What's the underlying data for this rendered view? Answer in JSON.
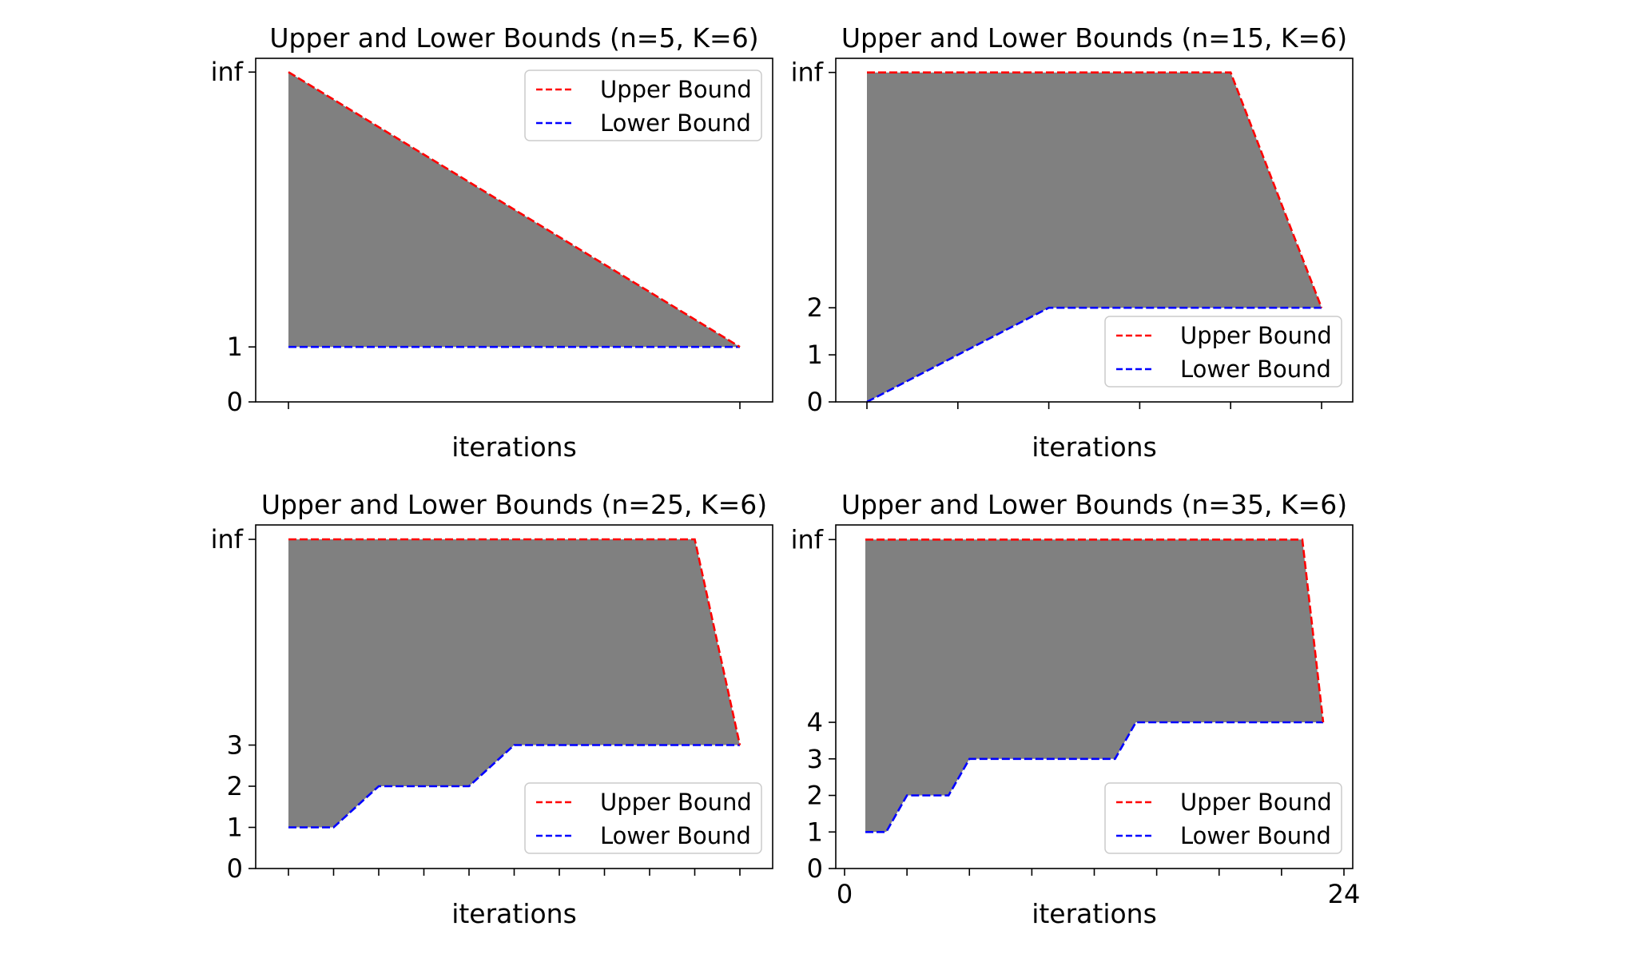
{
  "colors": {
    "upper": "#ff0000",
    "lower": "#0000ff",
    "fill": "#808080",
    "axes": "#000000",
    "background": "#ffffff"
  },
  "chart_data": [
    {
      "type": "area",
      "title": "Upper and Lower Bounds (n=5, K=6)",
      "xlabel": "iterations",
      "ylabel": "",
      "xlim": [
        0,
        1
      ],
      "x_ticks": [
        0,
        1
      ],
      "x_tick_labels": [
        "",
        ""
      ],
      "y_ticks": [
        0,
        1,
        6
      ],
      "y_tick_labels": [
        "0",
        "1",
        "inf"
      ],
      "ylim": [
        0,
        6.25
      ],
      "inf_value": 6,
      "legend_position": "upper right",
      "series": [
        {
          "name": "Upper Bound",
          "color": "#ff0000",
          "style": "dashed",
          "x": [
            0,
            1
          ],
          "y": [
            "inf",
            1
          ]
        },
        {
          "name": "Lower Bound",
          "color": "#0000ff",
          "style": "dashed",
          "x": [
            0,
            1
          ],
          "y": [
            1,
            1
          ]
        }
      ],
      "fill_between": {
        "color": "#808080",
        "between": [
          "Upper Bound",
          "Lower Bound"
        ]
      }
    },
    {
      "type": "area",
      "title": "Upper and Lower Bounds (n=15, K=6)",
      "xlabel": "iterations",
      "ylabel": "",
      "xlim": [
        0,
        5
      ],
      "x_ticks": [
        0,
        1,
        2,
        3,
        4,
        5
      ],
      "x_tick_labels": [
        "",
        "",
        "",
        "",
        "",
        ""
      ],
      "y_ticks": [
        0,
        1,
        2,
        7
      ],
      "y_tick_labels": [
        "0",
        "1",
        "2",
        "inf"
      ],
      "ylim": [
        0,
        7.3
      ],
      "inf_value": 7,
      "legend_position": "lower right",
      "series": [
        {
          "name": "Upper Bound",
          "color": "#ff0000",
          "style": "dashed",
          "x": [
            0,
            1,
            2,
            3,
            4,
            5
          ],
          "y": [
            "inf",
            "inf",
            "inf",
            "inf",
            "inf",
            2
          ]
        },
        {
          "name": "Lower Bound",
          "color": "#0000ff",
          "style": "dashed",
          "x": [
            0,
            1,
            2,
            3,
            4,
            5
          ],
          "y": [
            0,
            1,
            2,
            2,
            2,
            2
          ]
        }
      ],
      "fill_between": {
        "color": "#808080",
        "between": [
          "Upper Bound",
          "Lower Bound"
        ]
      }
    },
    {
      "type": "area",
      "title": "Upper and Lower Bounds (n=25, K=6)",
      "xlabel": "iterations",
      "ylabel": "",
      "xlim": [
        0,
        10
      ],
      "x_ticks": [
        0,
        1,
        2,
        3,
        4,
        5,
        6,
        7,
        8,
        9,
        10
      ],
      "x_tick_labels": [
        "",
        "",
        "",
        "",
        "",
        "",
        "",
        "",
        "",
        "",
        ""
      ],
      "y_ticks": [
        0,
        1,
        2,
        3,
        8
      ],
      "y_tick_labels": [
        "0",
        "1",
        "2",
        "3",
        "inf"
      ],
      "ylim": [
        0,
        8.35
      ],
      "inf_value": 8,
      "legend_position": "lower right",
      "series": [
        {
          "name": "Upper Bound",
          "color": "#ff0000",
          "style": "dashed",
          "x": [
            0,
            1,
            2,
            3,
            4,
            5,
            6,
            7,
            8,
            9,
            10
          ],
          "y": [
            "inf",
            "inf",
            "inf",
            "inf",
            "inf",
            "inf",
            "inf",
            "inf",
            "inf",
            "inf",
            3
          ]
        },
        {
          "name": "Lower Bound",
          "color": "#0000ff",
          "style": "dashed",
          "x": [
            0,
            1,
            2,
            3,
            4,
            5,
            6,
            7,
            8,
            9,
            10
          ],
          "y": [
            1,
            1,
            2,
            2,
            2,
            3,
            3,
            3,
            3,
            3,
            3
          ]
        }
      ],
      "fill_between": {
        "color": "#808080",
        "between": [
          "Upper Bound",
          "Lower Bound"
        ]
      }
    },
    {
      "type": "area",
      "title": "Upper and Lower Bounds (n=35, K=6)",
      "xlabel": "iterations",
      "ylabel": "",
      "xlim": [
        0,
        24
      ],
      "x_ticks": [
        0,
        3,
        6,
        9,
        12,
        15,
        18,
        21,
        24
      ],
      "x_tick_labels": [
        "0",
        "",
        "",
        "",
        "",
        "",
        "",
        "",
        "24"
      ],
      "y_ticks": [
        0,
        1,
        2,
        3,
        4,
        9
      ],
      "y_tick_labels": [
        "0",
        "1",
        "2",
        "3",
        "4",
        "inf"
      ],
      "ylim": [
        0,
        9.4
      ],
      "inf_value": 9,
      "legend_position": "lower right",
      "series": [
        {
          "name": "Upper Bound",
          "color": "#ff0000",
          "style": "dashed",
          "x": [
            1,
            2,
            3,
            4,
            5,
            6,
            7,
            8,
            9,
            10,
            11,
            12,
            13,
            14,
            15,
            16,
            17,
            18,
            19,
            20,
            21,
            22,
            23
          ],
          "y": [
            "inf",
            "inf",
            "inf",
            "inf",
            "inf",
            "inf",
            "inf",
            "inf",
            "inf",
            "inf",
            "inf",
            "inf",
            "inf",
            "inf",
            "inf",
            "inf",
            "inf",
            "inf",
            "inf",
            "inf",
            "inf",
            "inf",
            4
          ]
        },
        {
          "name": "Lower Bound",
          "color": "#0000ff",
          "style": "dashed",
          "x": [
            1,
            2,
            3,
            4,
            5,
            6,
            7,
            8,
            9,
            10,
            11,
            12,
            13,
            14,
            15,
            16,
            17,
            18,
            19,
            20,
            21,
            22,
            23
          ],
          "y": [
            1,
            1,
            2,
            2,
            2,
            3,
            3,
            3,
            3,
            3,
            3,
            3,
            3,
            4,
            4,
            4,
            4,
            4,
            4,
            4,
            4,
            4,
            4
          ]
        }
      ],
      "fill_between": {
        "color": "#808080",
        "between": [
          "Upper Bound",
          "Lower Bound"
        ]
      }
    }
  ]
}
